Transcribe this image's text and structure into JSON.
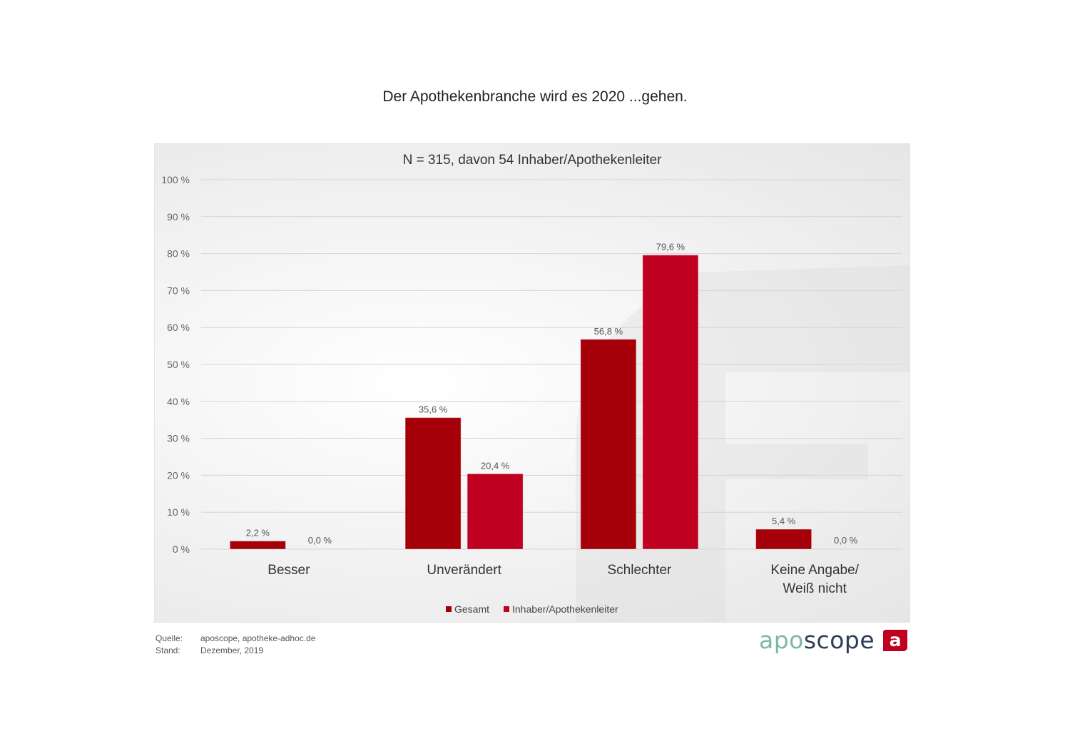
{
  "title": "Der Apothekenbranche wird es 2020 ...gehen.",
  "chart_data": {
    "type": "bar",
    "subtitle": "N = 315, davon 54 Inhaber/Apothekenleiter",
    "categories": [
      "Besser",
      "Unverändert",
      "Schlechter",
      "Keine Angabe/\nWeiß nicht"
    ],
    "series": [
      {
        "name": "Gesamt",
        "color": "#a50009",
        "values": [
          2.2,
          35.6,
          56.8,
          5.4
        ],
        "labels": [
          "2,2 %",
          "35,6 %",
          "56,8 %",
          "5,4 %"
        ]
      },
      {
        "name": "Inhaber/Apothekenleiter",
        "color": "#c00020",
        "values": [
          0.0,
          20.4,
          79.6,
          0.0
        ],
        "labels": [
          "0,0 %",
          "20,4 %",
          "79,6 %",
          "0,0 %"
        ]
      }
    ],
    "ylim": [
      0,
      100
    ],
    "yticks": [
      "0 %",
      "10 %",
      "20 %",
      "30 %",
      "40 %",
      "50 %",
      "60 %",
      "70 %",
      "80 %",
      "90 %",
      "100 %"
    ],
    "grid": true,
    "legend": "bottom-center"
  },
  "footer": {
    "source_label": "Quelle:",
    "source_value": "aposcope, apotheke-adhoc.de",
    "date_label": "Stand:",
    "date_value": "Dezember,  2019"
  },
  "logo": {
    "part1": "apo",
    "part2": "scope",
    "badge_letter": "a",
    "badge_color": "#c00020"
  }
}
